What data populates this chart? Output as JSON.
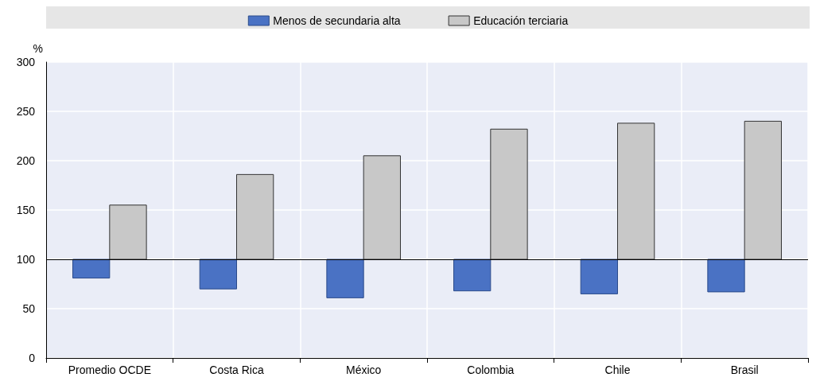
{
  "chart_data": {
    "type": "bar",
    "ylabel": "%",
    "categories": [
      "Promedio OCDE",
      "Costa Rica",
      "México",
      "Colombia",
      "Chile",
      "Brasil"
    ],
    "series": [
      {
        "name": "Menos de secundaria alta",
        "color": "#4a72c4",
        "base": [
          100,
          100,
          100,
          100,
          100,
          100
        ],
        "values": [
          -19,
          -30,
          -39,
          -32,
          -35,
          -33
        ]
      },
      {
        "name": "Educación terciaria",
        "color": "#c8c8c8",
        "base": [
          100,
          100,
          100,
          100,
          100,
          100
        ],
        "values": [
          55,
          86,
          105,
          132,
          138,
          140
        ]
      }
    ],
    "ylim": [
      0,
      300
    ],
    "yticks": [
      0,
      50,
      100,
      150,
      200,
      250,
      300
    ],
    "grid": true,
    "legend": "top",
    "ref_lines": [
      {
        "axis": "y",
        "value": 100,
        "color": "#000000"
      }
    ]
  }
}
